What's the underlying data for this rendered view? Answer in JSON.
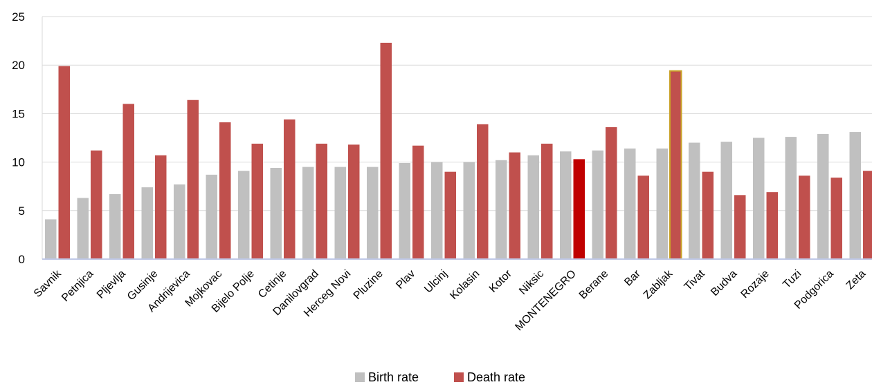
{
  "chart_data": {
    "type": "bar",
    "categories": [
      "Savnik",
      "Petnjica",
      "Pljevlja",
      "Gusinje",
      "Andrijevica",
      "Mojkovac",
      "Bijelo Polje",
      "Cetinje",
      "Danilovgrad",
      "Herceg Novi",
      "Pluzine",
      "Plav",
      "Ulcinj",
      "Kolasin",
      "Kotor",
      "Niksic",
      "MONTENEGRO",
      "Berane",
      "Bar",
      "Zabljak",
      "Tivat",
      "Budva",
      "Rozaje",
      "Tuzi",
      "Podgorica",
      "Zeta"
    ],
    "series": [
      {
        "name": "Birth rate",
        "color": "#c0c0c0",
        "values": [
          4.1,
          6.3,
          6.7,
          7.4,
          7.7,
          8.7,
          9.1,
          9.4,
          9.5,
          9.5,
          9.5,
          9.9,
          10.0,
          10.0,
          10.2,
          10.7,
          11.1,
          11.2,
          11.4,
          11.4,
          12.0,
          12.1,
          12.5,
          12.6,
          12.9,
          13.1
        ]
      },
      {
        "name": "Death rate",
        "color": "#c0504d",
        "values": [
          19.9,
          11.2,
          16.0,
          10.7,
          16.4,
          14.1,
          11.9,
          14.4,
          11.9,
          11.8,
          22.3,
          11.7,
          9.0,
          13.9,
          11.0,
          11.9,
          10.3,
          13.6,
          8.6,
          19.4,
          9.0,
          6.6,
          6.9,
          8.6,
          8.4,
          9.1
        ]
      }
    ],
    "highlights": {
      "MONTENEGRO": {
        "series": "Death rate",
        "color": "#c00000"
      },
      "Zabljak": {
        "series": "Death rate",
        "border_color": "#c9a227"
      }
    },
    "ylim": [
      0,
      25
    ],
    "yticks": [
      0,
      5,
      10,
      15,
      20,
      25
    ],
    "gridlines": true,
    "legend_position": "bottom",
    "title": "",
    "xlabel": "",
    "ylabel": ""
  }
}
